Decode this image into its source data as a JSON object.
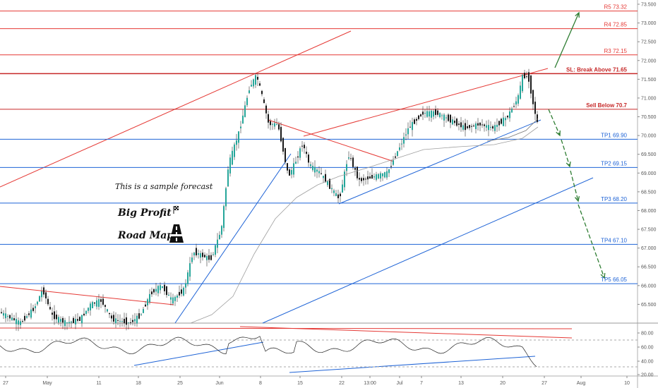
{
  "chart_data": {
    "type": "candlestick",
    "price_axis": {
      "min": 65.0,
      "max": 73.5,
      "ticks": [
        "73.500",
        "73.000",
        "72.500",
        "72.000",
        "71.500",
        "71.000",
        "70.500",
        "70.000",
        "69.500",
        "69.000",
        "68.500",
        "68.000",
        "67.500",
        "67.000",
        "66.500",
        "66.000",
        "65.500"
      ]
    },
    "x_ticks": [
      "27",
      "May",
      "11",
      "18",
      "25",
      "Jun",
      "8",
      "15",
      "22",
      "13:00",
      "Jul",
      "7",
      "13",
      "20",
      "27",
      "Aug",
      "10"
    ],
    "levels": [
      {
        "label": "R5 73.32",
        "value": 73.32,
        "color": "#e53935"
      },
      {
        "label": "R4 72.85",
        "value": 72.85,
        "color": "#e53935"
      },
      {
        "label": "R3 72.15",
        "value": 72.15,
        "color": "#e53935"
      },
      {
        "label": "SL: Break Above 71.65",
        "value": 71.65,
        "color": "#c62828"
      },
      {
        "label": "Sell Below 70.7",
        "value": 70.7,
        "color": "#c62828"
      },
      {
        "label": "TP1 69.90",
        "value": 69.9,
        "color": "#1e63d6"
      },
      {
        "label": "TP2 69.15",
        "value": 69.15,
        "color": "#1e63d6"
      },
      {
        "label": "TP3 68.20",
        "value": 68.2,
        "color": "#1e63d6"
      },
      {
        "label": "TP4 67.10",
        "value": 67.1,
        "color": "#1e63d6"
      },
      {
        "label": "TP5 66.05",
        "value": 66.05,
        "color": "#1e63d6"
      }
    ],
    "rsi_axis": {
      "ticks": [
        "80.00",
        "60.00",
        "40.00",
        "20.00"
      ]
    },
    "colors": {
      "up": "#26a69a",
      "down": "#1a1a1a",
      "resistance": "#e53935",
      "support": "#1e63d6",
      "arrow": "#2e7d32"
    }
  },
  "annotations": {
    "sample_note": "This is a sample forecast",
    "brand_line1": "Big Profit",
    "brand_line2": "Road Map",
    "flag_icon": "checkered-flag",
    "logo_icon": "road-map-logo"
  }
}
